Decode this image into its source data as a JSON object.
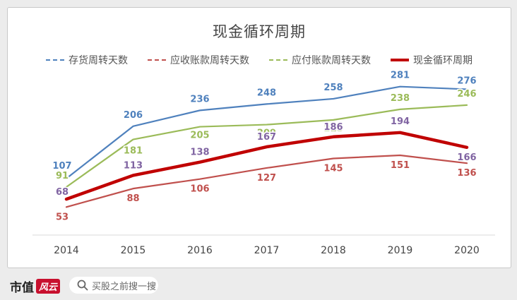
{
  "colors": {
    "inventory": "#4f81bd",
    "receivable": "#c0504d",
    "payable": "#9bbb59",
    "cycle": "#c00000",
    "label_cycle": "#8064a2"
  },
  "chart_data": {
    "type": "line",
    "title": "现金循环周期",
    "categories": [
      "2014",
      "2015",
      "2016",
      "2017",
      "2018",
      "2019",
      "2020"
    ],
    "series": [
      {
        "name": "存货周转天数",
        "values": [
          107,
          206,
          236,
          248,
          258,
          281,
          276
        ]
      },
      {
        "name": "应收账款周转天数",
        "values": [
          53,
          88,
          106,
          127,
          145,
          151,
          136
        ]
      },
      {
        "name": "应付账款周转天数",
        "values": [
          91,
          181,
          205,
          209,
          218,
          238,
          246
        ]
      },
      {
        "name": "现金循环周期",
        "values": [
          68,
          113,
          138,
          167,
          186,
          194,
          166
        ]
      }
    ],
    "ylim": [
      0,
      310
    ],
    "legend": "top"
  },
  "footer": {
    "brand": "市值",
    "brand_stamp": "风云",
    "search_text": "买股之前搜一搜"
  },
  "watermark": "市值风云"
}
